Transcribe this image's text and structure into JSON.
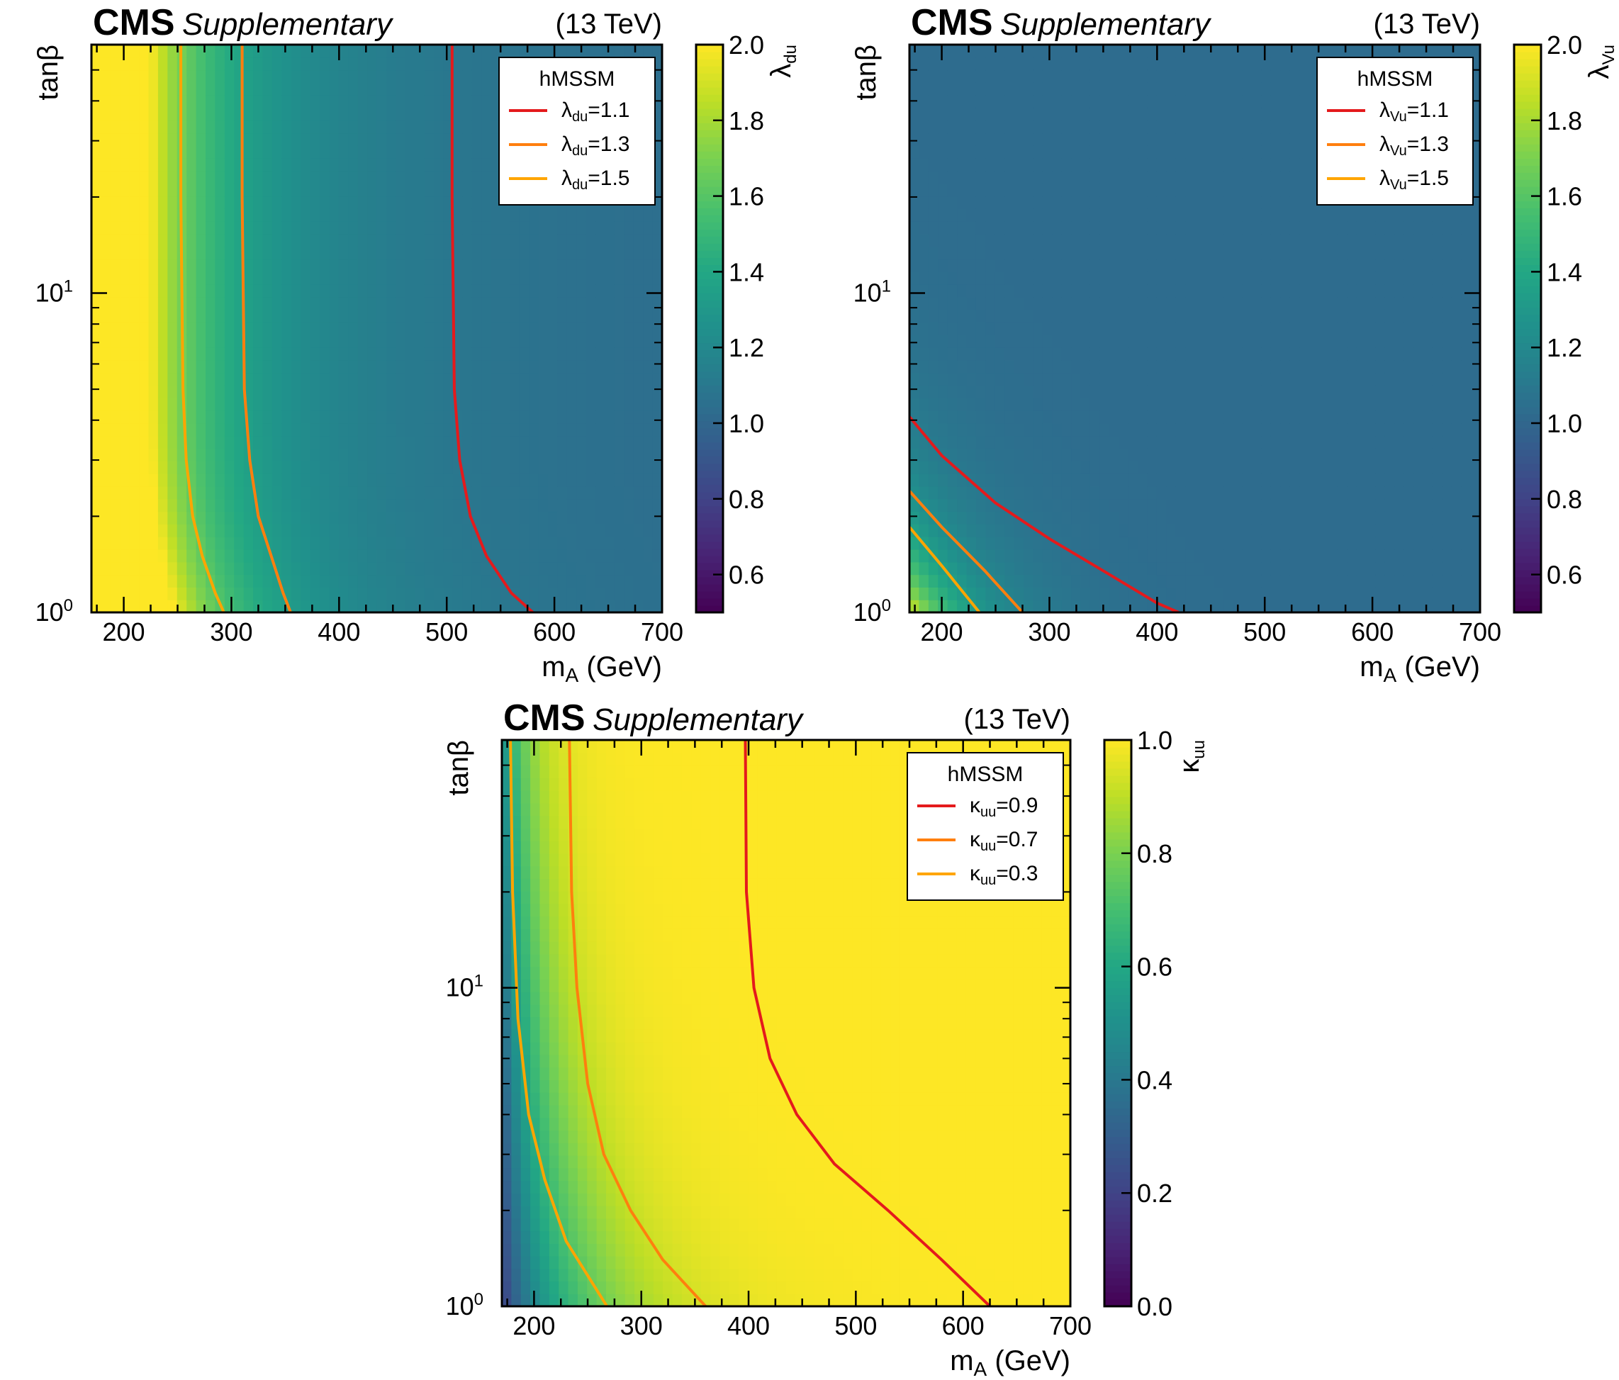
{
  "figure": {
    "header": {
      "experiment": "CMS",
      "status": "Supplementary",
      "energy": "(13 TeV)"
    }
  },
  "chart_data": [
    {
      "id": "lambda_du",
      "type": "heatmap",
      "xlabel": "m_A (GeV)",
      "ylabel": "tanβ",
      "xlim": [
        170,
        700
      ],
      "ylim": [
        1,
        60
      ],
      "yscale": "log",
      "xticks": [
        200,
        300,
        400,
        500,
        600,
        700
      ],
      "yticks": [
        {
          "value": 1,
          "label": "10",
          "sup": "0"
        },
        {
          "value": 10,
          "label": "10",
          "sup": "1"
        }
      ],
      "colorbar": {
        "label": "λ",
        "label_sub": "du",
        "range": [
          0.5,
          2.0
        ],
        "colormap": "viridis",
        "ticks": [
          "0.6",
          "0.8",
          "1.0",
          "1.2",
          "1.4",
          "1.6",
          "1.8",
          "2.0"
        ]
      },
      "legend": {
        "title": "hMSSM",
        "position": "top-right",
        "entries": [
          {
            "symbol": "λ",
            "sub": "du",
            "text": "=1.1",
            "color": "#e41a1c"
          },
          {
            "symbol": "λ",
            "sub": "du",
            "text": "=1.3",
            "color": "#ff7f0e"
          },
          {
            "symbol": "λ",
            "sub": "du",
            "text": "=1.5",
            "color": "#ffa500"
          }
        ]
      },
      "contours": [
        {
          "level": 1.1,
          "color": "#e41a1c",
          "points": [
            [
              505,
              60
            ],
            [
              505,
              20
            ],
            [
              507,
              5
            ],
            [
              512,
              3
            ],
            [
              522,
              2
            ],
            [
              537,
              1.5
            ],
            [
              560,
              1.15
            ],
            [
              580,
              1
            ]
          ]
        },
        {
          "level": 1.3,
          "color": "#ff7f0e",
          "points": [
            [
              310,
              60
            ],
            [
              310,
              20
            ],
            [
              312,
              5
            ],
            [
              317,
              3
            ],
            [
              325,
              2
            ],
            [
              337,
              1.5
            ],
            [
              348,
              1.15
            ],
            [
              355,
              1
            ]
          ]
        },
        {
          "level": 1.5,
          "color": "#ffa500",
          "points": [
            [
              253,
              60
            ],
            [
              253,
              20
            ],
            [
              255,
              5
            ],
            [
              258,
              3
            ],
            [
              264,
              2
            ],
            [
              273,
              1.5
            ],
            [
              285,
              1.15
            ],
            [
              293,
              1
            ]
          ]
        }
      ]
    },
    {
      "id": "lambda_Vu",
      "type": "heatmap",
      "xlabel": "m_A (GeV)",
      "ylabel": "tanβ",
      "xlim": [
        170,
        700
      ],
      "ylim": [
        1,
        60
      ],
      "yscale": "log",
      "xticks": [
        200,
        300,
        400,
        500,
        600,
        700
      ],
      "yticks": [
        {
          "value": 1,
          "label": "10",
          "sup": "0"
        },
        {
          "value": 10,
          "label": "10",
          "sup": "1"
        }
      ],
      "colorbar": {
        "label": "λ",
        "label_sub": "Vu",
        "range": [
          0.5,
          2.0
        ],
        "colormap": "viridis",
        "ticks": [
          "0.6",
          "0.8",
          "1.0",
          "1.2",
          "1.4",
          "1.6",
          "1.8",
          "2.0"
        ]
      },
      "legend": {
        "title": "hMSSM",
        "position": "top-right",
        "entries": [
          {
            "symbol": "λ",
            "sub": "Vu",
            "text": "=1.1",
            "color": "#e41a1c"
          },
          {
            "symbol": "λ",
            "sub": "Vu",
            "text": "=1.3",
            "color": "#ff7f0e"
          },
          {
            "symbol": "λ",
            "sub": "Vu",
            "text": "=1.5",
            "color": "#ffa500"
          }
        ]
      },
      "contours": [
        {
          "level": 1.1,
          "color": "#e41a1c",
          "points": [
            [
              170,
              4.1
            ],
            [
              200,
              3.1
            ],
            [
              250,
              2.2
            ],
            [
              300,
              1.7
            ],
            [
              350,
              1.35
            ],
            [
              400,
              1.07
            ],
            [
              420,
              1
            ]
          ]
        },
        {
          "level": 1.3,
          "color": "#ff7f0e",
          "points": [
            [
              170,
              2.4
            ],
            [
              200,
              1.85
            ],
            [
              240,
              1.35
            ],
            [
              275,
              1
            ]
          ]
        },
        {
          "level": 1.5,
          "color": "#ffa500",
          "points": [
            [
              170,
              1.85
            ],
            [
              200,
              1.4
            ],
            [
              235,
              1
            ]
          ]
        }
      ]
    },
    {
      "id": "kappa_uu",
      "type": "heatmap",
      "xlabel": "m_A (GeV)",
      "ylabel": "tanβ",
      "xlim": [
        170,
        700
      ],
      "ylim": [
        1,
        60
      ],
      "yscale": "log",
      "xticks": [
        200,
        300,
        400,
        500,
        600,
        700
      ],
      "yticks": [
        {
          "value": 1,
          "label": "10",
          "sup": "0"
        },
        {
          "value": 10,
          "label": "10",
          "sup": "1"
        }
      ],
      "colorbar": {
        "label": "κ",
        "label_sub": "uu",
        "range": [
          0.0,
          1.0
        ],
        "colormap": "viridis",
        "ticks": [
          "0.0",
          "0.2",
          "0.4",
          "0.6",
          "0.8",
          "1.0"
        ]
      },
      "legend": {
        "title": "hMSSM",
        "position": "top-right",
        "entries": [
          {
            "symbol": "κ",
            "sub": "uu",
            "text": "=0.9",
            "color": "#e41a1c"
          },
          {
            "symbol": "κ",
            "sub": "uu",
            "text": "=0.7",
            "color": "#ff7f0e"
          },
          {
            "symbol": "κ",
            "sub": "uu",
            "text": "=0.3",
            "color": "#ffa500"
          }
        ]
      },
      "contours": [
        {
          "level": 0.9,
          "color": "#e41a1c",
          "points": [
            [
              397,
              60
            ],
            [
              398,
              20
            ],
            [
              405,
              10
            ],
            [
              420,
              6
            ],
            [
              445,
              4
            ],
            [
              480,
              2.8
            ],
            [
              530,
              2
            ],
            [
              580,
              1.4
            ],
            [
              625,
              1
            ]
          ]
        },
        {
          "level": 0.7,
          "color": "#ff7f0e",
          "points": [
            [
              233,
              60
            ],
            [
              235,
              20
            ],
            [
              240,
              10
            ],
            [
              250,
              5
            ],
            [
              265,
              3
            ],
            [
              290,
              2
            ],
            [
              320,
              1.4
            ],
            [
              360,
              1
            ]
          ]
        },
        {
          "level": 0.3,
          "color": "#ffa500",
          "points": [
            [
              178,
              60
            ],
            [
              180,
              20
            ],
            [
              185,
              8
            ],
            [
              195,
              4
            ],
            [
              210,
              2.5
            ],
            [
              230,
              1.6
            ],
            [
              268,
              1
            ]
          ]
        }
      ]
    }
  ]
}
